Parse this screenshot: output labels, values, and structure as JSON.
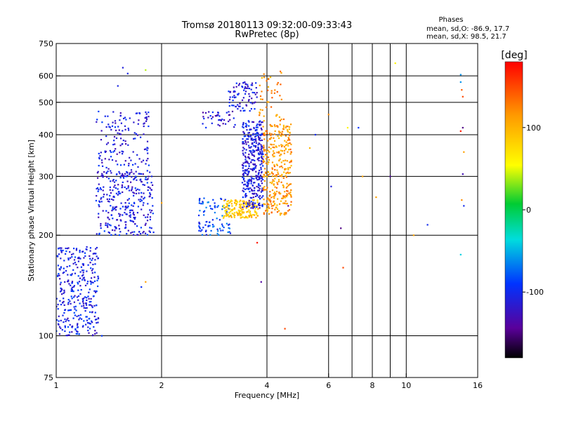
{
  "chart_data": {
    "type": "scatter",
    "title": "Tromsø 20180113 09:32:00-09:33:43",
    "subtitle": "RwPretec (8p)",
    "xlabel": "Frequency [MHz]",
    "ylabel": "Stationary phase Virtual Height [km]",
    "x_scale": "log",
    "y_scale": "log",
    "xlim": [
      1,
      16
    ],
    "ylim": [
      75,
      750
    ],
    "x_ticks": [
      1,
      2,
      4,
      6,
      8,
      10,
      16
    ],
    "x_tick_labels": [
      "1",
      "2",
      "4",
      "6",
      "8",
      "10",
      "16"
    ],
    "x_gridlines": [
      2,
      4,
      6,
      7,
      8,
      9,
      10
    ],
    "y_ticks": [
      75,
      100,
      200,
      300,
      400,
      500,
      600,
      750
    ],
    "y_tick_labels": [
      "75",
      "100",
      "200",
      "300",
      "400",
      "500",
      "600",
      "750"
    ],
    "y_gridlines": [
      100,
      200,
      300,
      400,
      500,
      600
    ],
    "grid": true,
    "stats": {
      "heading": "Phases",
      "line_o": "mean, sd,O: -86.9, 17.7",
      "line_x": "mean, sd,X:  98.5, 21.7"
    },
    "colorbar": {
      "label": "[deg]",
      "range": [
        -180,
        180
      ],
      "ticks": [
        100,
        0,
        -100
      ],
      "tick_labels": [
        "100",
        "0",
        "-100"
      ]
    },
    "clusters": [
      {
        "f": [
          1.0,
          1.32
        ],
        "h": [
          100,
          185
        ],
        "phase": -105,
        "n": 330
      },
      {
        "f": [
          1.3,
          1.9
        ],
        "h": [
          200,
          310
        ],
        "phase": -108,
        "n": 300
      },
      {
        "f": [
          1.3,
          1.85
        ],
        "h": [
          305,
          470
        ],
        "phase": -110,
        "n": 150
      },
      {
        "f": [
          2.55,
          3.15
        ],
        "h": [
          200,
          260
        ],
        "phase": -85,
        "n": 90
      },
      {
        "f": [
          3.0,
          3.8
        ],
        "h": [
          225,
          255
        ],
        "phase": 90,
        "n": 170
      },
      {
        "f": [
          3.4,
          3.9
        ],
        "h": [
          240,
          440
        ],
        "phase": -110,
        "n": 360
      },
      {
        "f": [
          3.9,
          4.7
        ],
        "h": [
          230,
          430
        ],
        "phase": 115,
        "n": 330
      },
      {
        "f": [
          2.6,
          3.3
        ],
        "h": [
          420,
          470
        ],
        "phase": -115,
        "n": 40
      },
      {
        "f": [
          3.1,
          3.75
        ],
        "h": [
          470,
          575
        ],
        "phase": -110,
        "n": 80
      },
      {
        "f": [
          3.8,
          4.5
        ],
        "h": [
          440,
          620
        ],
        "phase": 120,
        "n": 45
      }
    ],
    "isolated_points": [
      {
        "f": 1.55,
        "h": 635,
        "phase": -110
      },
      {
        "f": 1.6,
        "h": 610,
        "phase": -105
      },
      {
        "f": 1.5,
        "h": 560,
        "phase": -105
      },
      {
        "f": 1.8,
        "h": 625,
        "phase": 40
      },
      {
        "f": 1.35,
        "h": 100,
        "phase": -90
      },
      {
        "f": 1.75,
        "h": 140,
        "phase": -95
      },
      {
        "f": 1.8,
        "h": 145,
        "phase": 110
      },
      {
        "f": 2.0,
        "h": 250,
        "phase": 110
      },
      {
        "f": 3.75,
        "h": 190,
        "phase": 170
      },
      {
        "f": 3.85,
        "h": 145,
        "phase": -140
      },
      {
        "f": 4.5,
        "h": 105,
        "phase": 150
      },
      {
        "f": 4.6,
        "h": 245,
        "phase": -140
      },
      {
        "f": 5.3,
        "h": 365,
        "phase": 100
      },
      {
        "f": 5.5,
        "h": 400,
        "phase": -100
      },
      {
        "f": 6.0,
        "h": 460,
        "phase": 120
      },
      {
        "f": 6.1,
        "h": 280,
        "phase": -110
      },
      {
        "f": 6.5,
        "h": 210,
        "phase": -150
      },
      {
        "f": 6.6,
        "h": 160,
        "phase": 150
      },
      {
        "f": 6.8,
        "h": 420,
        "phase": 60
      },
      {
        "f": 7.3,
        "h": 420,
        "phase": -90
      },
      {
        "f": 7.5,
        "h": 300,
        "phase": 110
      },
      {
        "f": 8.2,
        "h": 260,
        "phase": 110
      },
      {
        "f": 9.3,
        "h": 655,
        "phase": 60
      },
      {
        "f": 9.0,
        "h": 300,
        "phase": -140
      },
      {
        "f": 10.5,
        "h": 200,
        "phase": 110
      },
      {
        "f": 11.5,
        "h": 215,
        "phase": -100
      },
      {
        "f": 14.3,
        "h": 605,
        "phase": -60
      },
      {
        "f": 14.3,
        "h": 575,
        "phase": -60
      },
      {
        "f": 14.4,
        "h": 545,
        "phase": 140
      },
      {
        "f": 14.5,
        "h": 520,
        "phase": 150
      },
      {
        "f": 14.5,
        "h": 420,
        "phase": -150
      },
      {
        "f": 14.3,
        "h": 410,
        "phase": 170
      },
      {
        "f": 14.6,
        "h": 355,
        "phase": 110
      },
      {
        "f": 14.5,
        "h": 305,
        "phase": -130
      },
      {
        "f": 14.4,
        "h": 255,
        "phase": 120
      },
      {
        "f": 14.6,
        "h": 245,
        "phase": -100
      },
      {
        "f": 14.3,
        "h": 175,
        "phase": -40
      }
    ]
  }
}
